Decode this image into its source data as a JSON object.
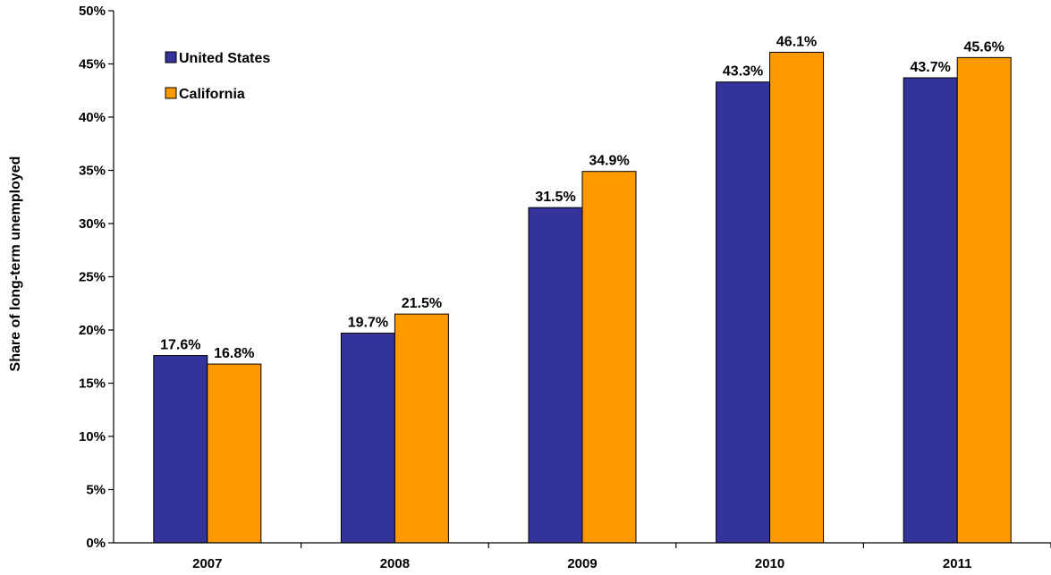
{
  "chart_data": {
    "type": "bar",
    "title": "",
    "xlabel": "",
    "ylabel": "Share of long-term unemployed",
    "categories": [
      "2007",
      "2008",
      "2009",
      "2010",
      "2011"
    ],
    "series": [
      {
        "name": "United States",
        "color": "#333399",
        "values": [
          17.6,
          19.7,
          31.5,
          43.3,
          43.7
        ],
        "labels": [
          "17.6%",
          "19.7%",
          "31.5%",
          "43.3%",
          "43.7%"
        ]
      },
      {
        "name": "California",
        "color": "#FF9900",
        "values": [
          16.8,
          21.5,
          34.9,
          46.1,
          45.6
        ],
        "labels": [
          "16.8%",
          "21.5%",
          "34.9%",
          "46.1%",
          "45.6%"
        ]
      }
    ],
    "ylim": [
      0,
      50
    ],
    "yticks": [
      0,
      5,
      10,
      15,
      20,
      25,
      30,
      35,
      40,
      45,
      50
    ],
    "ytick_labels": [
      "0%",
      "5%",
      "10%",
      "15%",
      "20%",
      "25%",
      "30%",
      "35%",
      "40%",
      "45%",
      "50%"
    ],
    "grid": false,
    "legend_position": "top-left"
  }
}
